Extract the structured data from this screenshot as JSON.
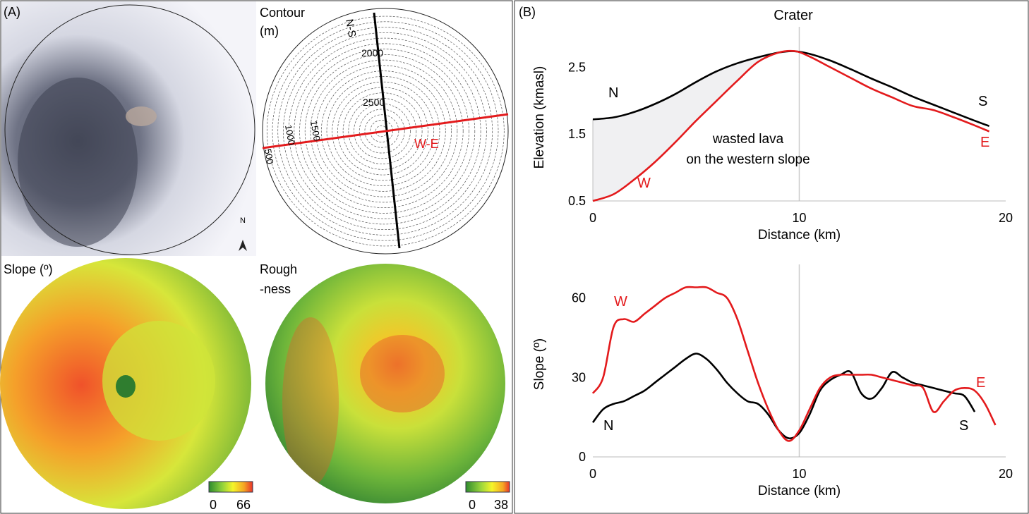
{
  "panel_a": {
    "label": "(A)",
    "contour": {
      "title_line1": "Contour",
      "title_line2": "(m)",
      "line_ns": "N-S",
      "line_we": "W-E",
      "labels": [
        "2000",
        "2500",
        "1000",
        "1500",
        "500"
      ]
    },
    "north": "N",
    "slope": {
      "title": "Slope (º)",
      "min": "0",
      "max": "66"
    },
    "roughness": {
      "title_line1": "Rough",
      "title_line2": "-ness",
      "min": "0",
      "max": "38"
    }
  },
  "panel_b": {
    "label": "(B)"
  },
  "colors": {
    "black_profile": "#000000",
    "red_profile": "#e31a1c",
    "fill": "#f0f0f2",
    "guide": "#cccccc"
  },
  "chart_data": [
    {
      "type": "line",
      "ylabel": "Elevation (kmasl)",
      "xlabel": "Distance (km)",
      "xlim": [
        0,
        20
      ],
      "ylim": [
        0.5,
        3.0
      ],
      "x_ticks": [
        "0",
        "10",
        "20"
      ],
      "y_ticks": [
        "0.5",
        "1.5",
        "2.5"
      ],
      "annotations": {
        "crater": "Crater",
        "n": "N",
        "s": "S",
        "w": "W",
        "e": "E",
        "wasted_line1": "wasted lava",
        "wasted_line2": "on the western slope"
      },
      "series": [
        {
          "name": "N-S",
          "color": "#000000",
          "x": [
            0,
            1,
            2,
            3,
            4,
            5,
            6,
            7,
            8,
            9,
            9.7,
            10.5,
            11.5,
            12.5,
            13.5,
            14.5,
            15.5,
            16.5,
            17.5,
            18.5,
            19.2
          ],
          "y": [
            1.72,
            1.75,
            1.83,
            1.95,
            2.1,
            2.28,
            2.44,
            2.56,
            2.65,
            2.72,
            2.74,
            2.7,
            2.6,
            2.47,
            2.33,
            2.2,
            2.06,
            1.94,
            1.82,
            1.7,
            1.62
          ]
        },
        {
          "name": "W-E",
          "color": "#e31a1c",
          "x": [
            0,
            1,
            2,
            3,
            4,
            5,
            6,
            7,
            8,
            9,
            9.8,
            10.5,
            11.5,
            12.5,
            13.5,
            14.5,
            15.5,
            16.5,
            17.5,
            18.5,
            19.2
          ],
          "y": [
            0.5,
            0.6,
            0.82,
            1.08,
            1.38,
            1.7,
            2.0,
            2.3,
            2.58,
            2.72,
            2.74,
            2.66,
            2.5,
            2.34,
            2.18,
            2.05,
            1.92,
            1.86,
            1.75,
            1.63,
            1.54
          ]
        }
      ]
    },
    {
      "type": "line",
      "ylabel": "Slope (º)",
      "xlabel": "Distance (km)",
      "xlim": [
        0,
        20
      ],
      "ylim": [
        0,
        70
      ],
      "x_ticks": [
        "0",
        "10",
        "20"
      ],
      "y_ticks": [
        "0",
        "30",
        "60"
      ],
      "annotations": {
        "n": "N",
        "s": "S",
        "w": "W",
        "e": "E"
      },
      "series": [
        {
          "name": "N-S",
          "color": "#000000",
          "x": [
            0,
            0.5,
            1,
            1.5,
            2,
            2.5,
            3,
            3.5,
            4,
            4.5,
            5,
            5.5,
            6,
            6.5,
            7,
            7.5,
            8,
            8.5,
            9,
            9.5,
            10,
            10.5,
            11,
            11.5,
            12,
            12.5,
            13,
            13.5,
            14,
            14.5,
            15,
            15.5,
            16,
            16.5,
            17,
            17.5,
            18,
            18.5
          ],
          "y": [
            13,
            18,
            20,
            21,
            23,
            25,
            28,
            31,
            34,
            37,
            39,
            37,
            33,
            28,
            24,
            21,
            20,
            16,
            10,
            7,
            9,
            16,
            25,
            29,
            31,
            32,
            24,
            22,
            26,
            32,
            30,
            28,
            27,
            26,
            25,
            24,
            23,
            17
          ]
        },
        {
          "name": "W-E",
          "color": "#e31a1c",
          "x": [
            0,
            0.5,
            1,
            1.5,
            2,
            2.5,
            3,
            3.5,
            4,
            4.5,
            5,
            5.5,
            6,
            6.5,
            7,
            7.5,
            8,
            8.5,
            9,
            9.5,
            10,
            10.5,
            11,
            11.5,
            12,
            12.5,
            13,
            13.5,
            14,
            14.5,
            15,
            15.5,
            16,
            16.5,
            17,
            17.5,
            18,
            18.5,
            19,
            19.5
          ],
          "y": [
            24,
            30,
            49,
            52,
            51,
            54,
            57,
            60,
            62,
            64,
            64,
            64,
            62,
            60,
            52,
            40,
            28,
            18,
            10,
            6,
            10,
            18,
            26,
            30,
            31,
            31,
            31,
            31,
            30,
            29,
            28,
            27,
            26,
            17,
            21,
            25,
            26,
            25,
            20,
            12
          ]
        }
      ]
    }
  ]
}
